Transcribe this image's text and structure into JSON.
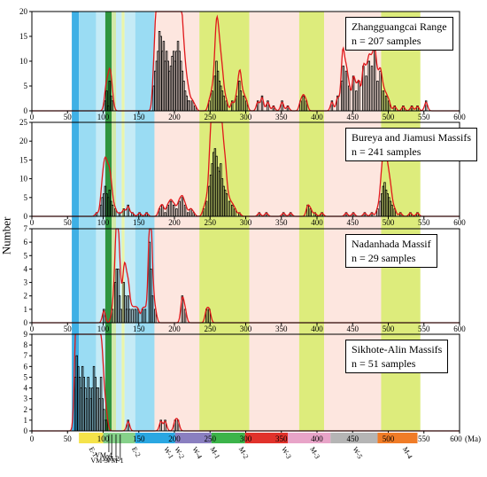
{
  "figure": {
    "ylabel": "Number",
    "unit_label": "(Ma)"
  },
  "chart_data": [
    {
      "type": "bar",
      "panel": "top",
      "legend_title": "Zhangguangcai Range",
      "legend_n": "n = 207 samples",
      "xlim": [
        0,
        600
      ],
      "ylim": [
        0,
        20
      ],
      "yticks": [
        0,
        5,
        10,
        15,
        20
      ],
      "xticks": [
        0,
        50,
        100,
        150,
        200,
        250,
        300,
        350,
        400,
        450,
        500,
        550,
        600
      ],
      "bin_width": 2,
      "bins": [
        [
          102,
          2
        ],
        [
          104,
          4
        ],
        [
          106,
          1
        ],
        [
          108,
          6
        ],
        [
          110,
          3
        ],
        [
          112,
          2
        ],
        [
          170,
          5
        ],
        [
          172,
          8
        ],
        [
          174,
          10
        ],
        [
          176,
          12
        ],
        [
          178,
          16
        ],
        [
          180,
          15
        ],
        [
          182,
          12
        ],
        [
          184,
          14
        ],
        [
          186,
          10
        ],
        [
          188,
          12
        ],
        [
          190,
          10
        ],
        [
          192,
          8
        ],
        [
          194,
          9
        ],
        [
          196,
          11
        ],
        [
          198,
          12
        ],
        [
          200,
          10
        ],
        [
          202,
          12
        ],
        [
          204,
          14
        ],
        [
          206,
          12
        ],
        [
          208,
          10
        ],
        [
          210,
          8
        ],
        [
          212,
          6
        ],
        [
          214,
          4
        ],
        [
          216,
          3
        ],
        [
          218,
          2
        ],
        [
          220,
          2
        ],
        [
          224,
          2
        ],
        [
          228,
          1
        ],
        [
          248,
          2
        ],
        [
          252,
          4
        ],
        [
          256,
          7
        ],
        [
          258,
          10
        ],
        [
          260,
          8
        ],
        [
          262,
          6
        ],
        [
          264,
          5
        ],
        [
          266,
          4
        ],
        [
          268,
          3
        ],
        [
          272,
          2
        ],
        [
          280,
          2
        ],
        [
          286,
          3
        ],
        [
          290,
          6
        ],
        [
          292,
          4
        ],
        [
          296,
          3
        ],
        [
          300,
          2
        ],
        [
          316,
          2
        ],
        [
          322,
          3
        ],
        [
          330,
          2
        ],
        [
          338,
          1
        ],
        [
          350,
          2
        ],
        [
          358,
          1
        ],
        [
          376,
          2
        ],
        [
          380,
          3
        ],
        [
          384,
          2
        ],
        [
          420,
          2
        ],
        [
          428,
          3
        ],
        [
          434,
          6
        ],
        [
          436,
          9
        ],
        [
          440,
          8
        ],
        [
          444,
          5
        ],
        [
          450,
          7
        ],
        [
          454,
          4
        ],
        [
          458,
          6
        ],
        [
          464,
          9
        ],
        [
          468,
          7
        ],
        [
          472,
          10
        ],
        [
          476,
          9
        ],
        [
          480,
          12
        ],
        [
          484,
          6
        ],
        [
          488,
          8
        ],
        [
          492,
          4
        ],
        [
          496,
          3
        ],
        [
          500,
          2
        ],
        [
          508,
          1
        ],
        [
          520,
          1
        ],
        [
          532,
          1
        ],
        [
          540,
          1
        ],
        [
          552,
          2
        ]
      ]
    },
    {
      "type": "bar",
      "panel": "second",
      "legend_title": "Bureya and Jiamusi Massifs",
      "legend_n": "n = 241 samples",
      "xlim": [
        0,
        600
      ],
      "ylim": [
        0,
        25
      ],
      "yticks": [
        0,
        5,
        10,
        15,
        20,
        25
      ],
      "xticks": [
        0,
        50,
        100,
        150,
        200,
        250,
        300,
        350,
        400,
        450,
        500,
        550,
        600
      ],
      "bin_width": 2,
      "bins": [
        [
          90,
          1
        ],
        [
          96,
          3
        ],
        [
          98,
          5
        ],
        [
          100,
          6
        ],
        [
          102,
          8
        ],
        [
          104,
          6
        ],
        [
          106,
          5
        ],
        [
          108,
          7
        ],
        [
          110,
          4
        ],
        [
          112,
          3
        ],
        [
          116,
          2
        ],
        [
          122,
          1
        ],
        [
          128,
          2
        ],
        [
          134,
          3
        ],
        [
          140,
          1
        ],
        [
          150,
          1
        ],
        [
          160,
          1
        ],
        [
          178,
          2
        ],
        [
          182,
          3
        ],
        [
          186,
          1
        ],
        [
          190,
          3
        ],
        [
          194,
          4
        ],
        [
          198,
          3
        ],
        [
          202,
          2
        ],
        [
          206,
          4
        ],
        [
          210,
          5
        ],
        [
          214,
          3
        ],
        [
          218,
          1
        ],
        [
          222,
          2
        ],
        [
          226,
          1
        ],
        [
          240,
          2
        ],
        [
          244,
          4
        ],
        [
          248,
          8
        ],
        [
          250,
          11
        ],
        [
          252,
          14
        ],
        [
          254,
          17
        ],
        [
          256,
          18
        ],
        [
          258,
          16
        ],
        [
          260,
          13
        ],
        [
          262,
          12
        ],
        [
          264,
          14
        ],
        [
          266,
          10
        ],
        [
          268,
          8
        ],
        [
          270,
          7
        ],
        [
          272,
          6
        ],
        [
          276,
          4
        ],
        [
          280,
          3
        ],
        [
          284,
          2
        ],
        [
          290,
          1
        ],
        [
          318,
          1
        ],
        [
          328,
          1
        ],
        [
          352,
          1
        ],
        [
          362,
          1
        ],
        [
          386,
          3
        ],
        [
          390,
          2
        ],
        [
          396,
          1
        ],
        [
          406,
          1
        ],
        [
          440,
          1
        ],
        [
          450,
          1
        ],
        [
          466,
          1
        ],
        [
          476,
          1
        ],
        [
          484,
          2
        ],
        [
          488,
          4
        ],
        [
          490,
          6
        ],
        [
          492,
          8
        ],
        [
          494,
          9
        ],
        [
          496,
          7
        ],
        [
          498,
          6
        ],
        [
          500,
          5
        ],
        [
          502,
          4
        ],
        [
          504,
          3
        ],
        [
          508,
          2
        ],
        [
          516,
          1
        ],
        [
          530,
          1
        ],
        [
          540,
          1
        ]
      ]
    },
    {
      "type": "bar",
      "panel": "third",
      "legend_title": "Nadanhada Massif",
      "legend_n": "n = 29 samples",
      "xlim": [
        0,
        600
      ],
      "ylim": [
        0,
        7
      ],
      "yticks": [
        0,
        1,
        2,
        3,
        4,
        5,
        6,
        7
      ],
      "xticks": [
        0,
        50,
        100,
        150,
        200,
        250,
        300,
        350,
        400,
        450,
        500,
        550,
        600
      ],
      "bin_width": 2,
      "bins": [
        [
          100,
          1
        ],
        [
          112,
          1
        ],
        [
          116,
          3
        ],
        [
          118,
          4
        ],
        [
          120,
          4
        ],
        [
          122,
          2
        ],
        [
          124,
          1
        ],
        [
          128,
          3
        ],
        [
          130,
          2
        ],
        [
          132,
          1
        ],
        [
          134,
          2
        ],
        [
          136,
          1
        ],
        [
          140,
          1
        ],
        [
          144,
          1
        ],
        [
          148,
          1
        ],
        [
          154,
          1
        ],
        [
          158,
          1
        ],
        [
          164,
          6
        ],
        [
          166,
          4
        ],
        [
          168,
          2
        ],
        [
          172,
          1
        ],
        [
          210,
          2
        ],
        [
          214,
          1
        ],
        [
          244,
          1
        ],
        [
          248,
          1
        ]
      ]
    },
    {
      "type": "bar",
      "panel": "bottom",
      "legend_title": "Sikhote-Alin Massifs",
      "legend_n": "n = 51 samples",
      "xlim": [
        0,
        600
      ],
      "ylim": [
        0,
        9
      ],
      "yticks": [
        0,
        1,
        2,
        3,
        4,
        5,
        6,
        7,
        8,
        9
      ],
      "xticks": [
        0,
        50,
        100,
        150,
        200,
        250,
        300,
        350,
        400,
        450,
        500,
        550,
        600
      ],
      "bin_width": 2,
      "bins": [
        [
          60,
          5
        ],
        [
          62,
          7
        ],
        [
          64,
          6
        ],
        [
          66,
          5
        ],
        [
          68,
          4
        ],
        [
          70,
          6
        ],
        [
          72,
          5
        ],
        [
          74,
          4
        ],
        [
          76,
          3
        ],
        [
          78,
          5
        ],
        [
          80,
          4
        ],
        [
          82,
          3
        ],
        [
          84,
          4
        ],
        [
          86,
          6
        ],
        [
          88,
          5
        ],
        [
          90,
          4
        ],
        [
          92,
          4
        ],
        [
          94,
          3
        ],
        [
          96,
          5
        ],
        [
          98,
          3
        ],
        [
          100,
          2
        ],
        [
          102,
          1
        ],
        [
          104,
          1
        ],
        [
          134,
          1
        ],
        [
          180,
          1
        ],
        [
          186,
          1
        ],
        [
          200,
          1
        ],
        [
          204,
          1
        ]
      ]
    }
  ],
  "time_bands": [
    {
      "from": 56,
      "to": 66,
      "color": "#2aa7e2"
    },
    {
      "from": 66,
      "to": 90,
      "color": "#8fd8f2"
    },
    {
      "from": 90,
      "to": 103,
      "color": "#bfe9f5"
    },
    {
      "from": 103,
      "to": 112,
      "color": "#1a8a2a"
    },
    {
      "from": 112,
      "to": 118,
      "color": "#cfe8a0"
    },
    {
      "from": 118,
      "to": 126,
      "color": "#bfe9f5"
    },
    {
      "from": 126,
      "to": 130,
      "color": "#e8f4a0"
    },
    {
      "from": 130,
      "to": 145,
      "color": "#bfe9f5"
    },
    {
      "from": 145,
      "to": 172,
      "color": "#8fd8f2"
    },
    {
      "from": 172,
      "to": 235,
      "color": "#fde3dc"
    },
    {
      "from": 235,
      "to": 305,
      "color": "#d9ea6e"
    },
    {
      "from": 305,
      "to": 375,
      "color": "#fde3dc"
    },
    {
      "from": 375,
      "to": 410,
      "color": "#d9ea6e"
    },
    {
      "from": 410,
      "to": 490,
      "color": "#fde3dc"
    },
    {
      "from": 490,
      "to": 545,
      "color": "#d9ea6e"
    }
  ],
  "timescale": {
    "segments": [
      {
        "from": 56,
        "to": 66,
        "color": "#ffffff"
      },
      {
        "from": 66,
        "to": 100,
        "color": "#f5e34a"
      },
      {
        "from": 100,
        "to": 145,
        "color": "#86d18a"
      },
      {
        "from": 145,
        "to": 201,
        "color": "#2aa7e2"
      },
      {
        "from": 201,
        "to": 252,
        "color": "#8a7fc0"
      },
      {
        "from": 252,
        "to": 299,
        "color": "#3cb44a"
      },
      {
        "from": 299,
        "to": 359,
        "color": "#e1322b"
      },
      {
        "from": 359,
        "to": 419,
        "color": "#e8a4c8"
      },
      {
        "from": 419,
        "to": 485,
        "color": "#b5b5b5"
      },
      {
        "from": 485,
        "to": 541,
        "color": "#f07c27"
      }
    ],
    "labels": [
      {
        "x": 100,
        "text": "100"
      },
      {
        "x": 150,
        "text": "150"
      },
      {
        "x": 200,
        "text": "200"
      },
      {
        "x": 250,
        "text": "250"
      },
      {
        "x": 300,
        "text": "300"
      },
      {
        "x": 350,
        "text": "350"
      },
      {
        "x": 400,
        "text": "400"
      },
      {
        "x": 450,
        "text": "450"
      },
      {
        "x": 500,
        "text": "500"
      },
      {
        "x": 550,
        "text": "550"
      },
      {
        "x": 600,
        "text": "600"
      }
    ]
  },
  "event_labels": [
    {
      "x": 80,
      "text": "E-1"
    },
    {
      "x": 140,
      "text": "E-2"
    },
    {
      "x": 185,
      "text": "W-1"
    },
    {
      "x": 200,
      "text": "W-2"
    },
    {
      "x": 225,
      "text": "W-4"
    },
    {
      "x": 250,
      "text": "M-1"
    },
    {
      "x": 290,
      "text": "M-2"
    },
    {
      "x": 350,
      "text": "W-3"
    },
    {
      "x": 390,
      "text": "M-3"
    },
    {
      "x": 450,
      "text": "W-5"
    },
    {
      "x": 520,
      "text": "M-4"
    }
  ],
  "vm_labels": [
    "VM-4",
    "VM-3",
    "VM-2",
    "VM-1"
  ]
}
